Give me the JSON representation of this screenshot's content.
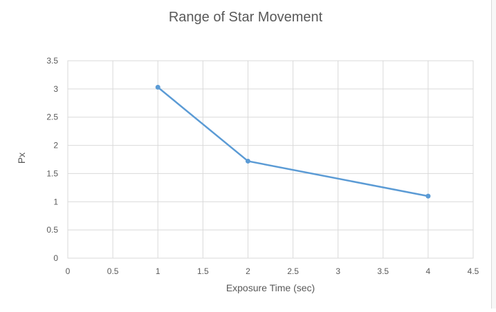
{
  "chart_data": {
    "type": "scatter",
    "title": "Range of Star Movement",
    "xlabel": "Exposure Time (sec)",
    "ylabel": "Px",
    "xlim": [
      0,
      4.5
    ],
    "ylim": [
      0,
      3.5
    ],
    "x_ticks": [
      "0",
      "0.5",
      "1",
      "1.5",
      "2",
      "2.5",
      "3",
      "3.5",
      "4",
      "4.5"
    ],
    "y_ticks": [
      "0",
      "0.5",
      "1",
      "1.5",
      "2",
      "2.5",
      "3",
      "3.5"
    ],
    "grid": true,
    "series": [
      {
        "x": [
          1,
          2,
          4
        ],
        "y": [
          3.03,
          1.72,
          1.1
        ],
        "color": "#5b9bd5",
        "style": "scatter with straight lines and markers"
      }
    ]
  }
}
